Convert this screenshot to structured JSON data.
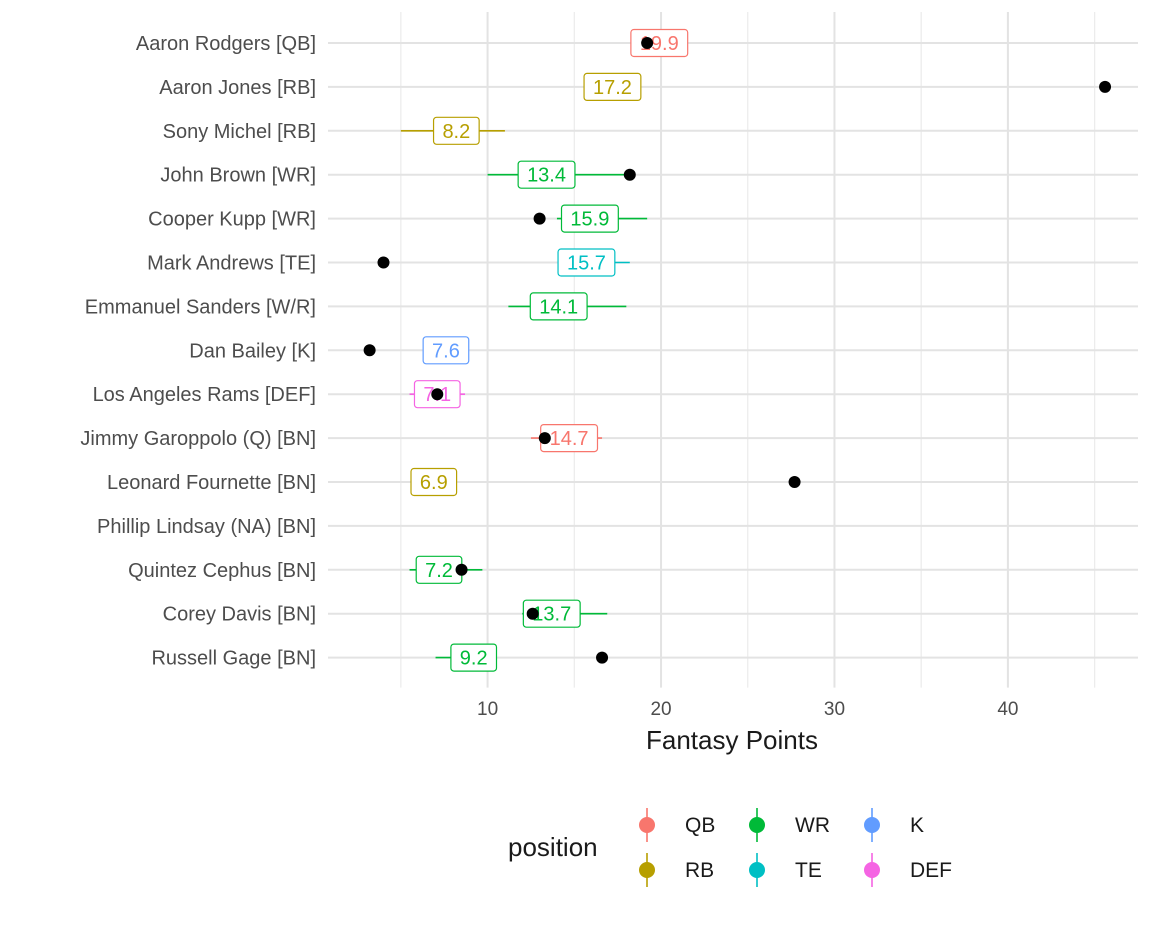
{
  "chart_data": {
    "type": "scatter",
    "title": "",
    "xlabel": "Fantasy Points",
    "ylabel": "",
    "xlim": [
      0.8,
      47.5
    ],
    "x_ticks": [
      10,
      20,
      30,
      40
    ],
    "x_minor_ticks": [
      5,
      15,
      25,
      35,
      45
    ],
    "grid": true,
    "legend": {
      "title": "position",
      "placement": "bottom",
      "entries": [
        {
          "label": "QB",
          "color": "#F8766D"
        },
        {
          "label": "RB",
          "color": "#B79F00"
        },
        {
          "label": "WR",
          "color": "#00BA38"
        },
        {
          "label": "TE",
          "color": "#00BFC4"
        },
        {
          "label": "K",
          "color": "#619CFF"
        },
        {
          "label": "DEF",
          "color": "#F564E3"
        }
      ]
    },
    "players": [
      {
        "name": "Aaron Rodgers [QB]",
        "position": "QB",
        "projection": 19.9,
        "projection_label": "19.9",
        "range": [
          19.0,
          20.8
        ],
        "actual": 19.2
      },
      {
        "name": "Aaron Jones [RB]",
        "position": "RB",
        "projection": 17.2,
        "projection_label": "17.2",
        "range": null,
        "actual": 45.6
      },
      {
        "name": "Sony Michel [RB]",
        "position": "RB",
        "projection": 8.2,
        "projection_label": "8.2",
        "range": [
          5.0,
          11.0
        ],
        "actual": null
      },
      {
        "name": "John Brown [WR]",
        "position": "WR",
        "projection": 13.4,
        "projection_label": "13.4",
        "range": [
          10.0,
          18.3
        ],
        "actual": 18.2
      },
      {
        "name": "Cooper Kupp [WR]",
        "position": "WR",
        "projection": 15.9,
        "projection_label": "15.9",
        "range": [
          14.0,
          19.2
        ],
        "actual": 13.0
      },
      {
        "name": "Mark Andrews [TE]",
        "position": "TE",
        "projection": 15.7,
        "projection_label": "15.7",
        "range": [
          16.5,
          18.2
        ],
        "actual": 4.0
      },
      {
        "name": "Emmanuel Sanders [W/R]",
        "position": "WR",
        "projection": 14.1,
        "projection_label": "14.1",
        "range": [
          11.2,
          18.0
        ],
        "actual": null
      },
      {
        "name": "Dan Bailey [K]",
        "position": "K",
        "projection": 7.6,
        "projection_label": "7.6",
        "range": null,
        "actual": 3.2
      },
      {
        "name": "Los Angeles Rams [DEF]",
        "position": "DEF",
        "projection": 7.1,
        "projection_label": "7.1",
        "range": [
          5.5,
          8.7
        ],
        "actual": 7.1
      },
      {
        "name": "Jimmy Garoppolo (Q) [BN]",
        "position": "QB",
        "projection": 14.7,
        "projection_label": "14.7",
        "range": [
          12.5,
          16.6
        ],
        "actual": 13.3
      },
      {
        "name": "Leonard Fournette [BN]",
        "position": "RB",
        "projection": 6.9,
        "projection_label": "6.9",
        "range": null,
        "actual": 27.7
      },
      {
        "name": "Phillip Lindsay (NA) [BN]",
        "position": "RB",
        "projection": null,
        "projection_label": "",
        "range": null,
        "actual": null
      },
      {
        "name": "Quintez Cephus [BN]",
        "position": "WR",
        "projection": 7.2,
        "projection_label": "7.2",
        "range": [
          5.5,
          9.7
        ],
        "actual": 8.5
      },
      {
        "name": "Corey Davis [BN]",
        "position": "WR",
        "projection": 13.7,
        "projection_label": "13.7",
        "range": [
          12.0,
          16.9
        ],
        "actual": 12.6
      },
      {
        "name": "Russell Gage [BN]",
        "position": "WR",
        "projection": 9.2,
        "projection_label": "9.2",
        "range": [
          7.0,
          10.5
        ],
        "actual": 16.6
      }
    ]
  }
}
